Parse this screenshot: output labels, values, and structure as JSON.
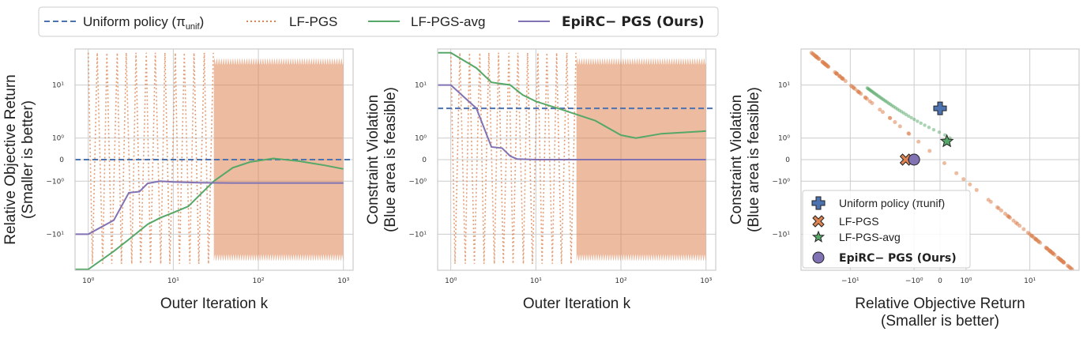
{
  "colors": {
    "uniform": "#4C72B0",
    "lf_pgs": "#DD8452",
    "lf_pgs_avg": "#55A868",
    "epirc": "#8172B3",
    "grid": "#cccccc",
    "frame": "#cccccc"
  },
  "legend": {
    "items": [
      "Uniform policy (π_unif)",
      "LF-PGS",
      "LF-PGS-avg",
      "EpiRC− PGS (Ours)"
    ],
    "uniform_text": "Uniform policy (π",
    "unif_sub": "unif",
    "uniform_close": ")",
    "lf_pgs": "LF-PGS",
    "lf_pgs_avg": "LF-PGS-avg",
    "epirc": "EpiRC− PGS (Ours)"
  },
  "chart_data": [
    {
      "type": "line",
      "xlabel": "Outer Iteration k",
      "ylabel": [
        "Relative Objective Return",
        "(Smaller is better)"
      ],
      "xscale": "log",
      "yscale": "symlog",
      "xticks": [
        "10⁰",
        "10¹",
        "10²",
        "10³"
      ],
      "yticks": [
        "10¹",
        "10⁰",
        "0",
        "−10⁰",
        "−10¹"
      ],
      "xlim": [
        0.7,
        1300
      ],
      "series": [
        {
          "name": "Uniform policy (π_unif)",
          "style": "dashed",
          "x": [
            0.7,
            1300
          ],
          "y": [
            0,
            0
          ]
        },
        {
          "name": "LF-PGS",
          "style": "dotted",
          "band": true,
          "band_range": [
            -25,
            25
          ]
        },
        {
          "name": "LF-PGS-avg",
          "style": "solid",
          "x": [
            0.7,
            1,
            2,
            3,
            5,
            7,
            10,
            15,
            20,
            30,
            50,
            80,
            150,
            300,
            600,
            1000
          ],
          "y": [
            -33,
            -33,
            -18,
            -12,
            -7,
            -5.5,
            -4.5,
            -3.5,
            -2.2,
            -1.0,
            -0.3,
            -0.08,
            0.04,
            -0.05,
            -0.2,
            -0.35
          ]
        },
        {
          "name": "EpiRC− PGS (Ours)",
          "style": "solid",
          "x": [
            0.7,
            1,
            2,
            3,
            4,
            5,
            7,
            10,
            20,
            50,
            100,
            1000
          ],
          "y": [
            -10,
            -10,
            -6,
            -1.9,
            -1.8,
            -1.15,
            -1.0,
            -1.05,
            -1.1,
            -1.12,
            -1.12,
            -1.12
          ]
        }
      ]
    },
    {
      "type": "line",
      "xlabel": "Outer Iteration k",
      "ylabel": [
        "Constraint Violation",
        "(Blue area is feasible)"
      ],
      "xscale": "log",
      "yscale": "symlog",
      "xticks": [
        "10⁰",
        "10¹",
        "10²",
        "10³"
      ],
      "yticks": [
        "10¹",
        "10⁰",
        "0",
        "−10⁰",
        "−10¹"
      ],
      "xlim": [
        0.7,
        1300
      ],
      "series": [
        {
          "name": "Uniform policy (π_unif)",
          "style": "dashed",
          "x": [
            0.7,
            1300
          ],
          "y": [
            4.2,
            4.2
          ]
        },
        {
          "name": "LF-PGS",
          "style": "dotted",
          "band": true,
          "band_range": [
            -25,
            25
          ]
        },
        {
          "name": "LF-PGS-avg",
          "style": "solid",
          "x": [
            0.7,
            1,
            2,
            3,
            5,
            7,
            10,
            20,
            50,
            100,
            150,
            300,
            1000
          ],
          "y": [
            30,
            30,
            18,
            11,
            10,
            7,
            5.5,
            4,
            2.5,
            1.2,
            1.0,
            1.3,
            1.5
          ]
        },
        {
          "name": "EpiRC− PGS (Ours)",
          "style": "solid",
          "x": [
            0.7,
            1,
            2,
            3,
            4,
            5,
            6,
            10,
            100,
            1000
          ],
          "y": [
            10,
            10,
            4.2,
            0.5,
            0.45,
            0.12,
            0.02,
            0.0,
            0.0,
            0.0
          ]
        }
      ]
    },
    {
      "type": "scatter",
      "xlabel": [
        "Relative Objective Return",
        "(Smaller is better)"
      ],
      "ylabel": [
        "Constraint Violation",
        "(Blue area is feasible)"
      ],
      "xscale": "symlog",
      "yscale": "symlog",
      "xticks": [
        "−10¹",
        "−10⁰",
        "0",
        "10⁰",
        "10¹"
      ],
      "yticks": [
        "10¹",
        "10⁰",
        "0",
        "−10⁰",
        "−10¹"
      ],
      "legend_position": "lower-left",
      "series": [
        {
          "name": "Uniform policy (π_unif)",
          "marker": "plus",
          "x": [
            0
          ],
          "y": [
            4.2
          ]
        },
        {
          "name": "LF-PGS",
          "marker": "X",
          "x": [
            -1.5
          ],
          "y": [
            0
          ],
          "cloud": true
        },
        {
          "name": "LF-PGS-avg",
          "marker": "star",
          "x": [
            0.2
          ],
          "y": [
            0.8
          ]
        },
        {
          "name": "EpiRC− PGS (Ours)",
          "marker": "circle",
          "x": [
            -1.0
          ],
          "y": [
            0
          ]
        }
      ]
    }
  ]
}
